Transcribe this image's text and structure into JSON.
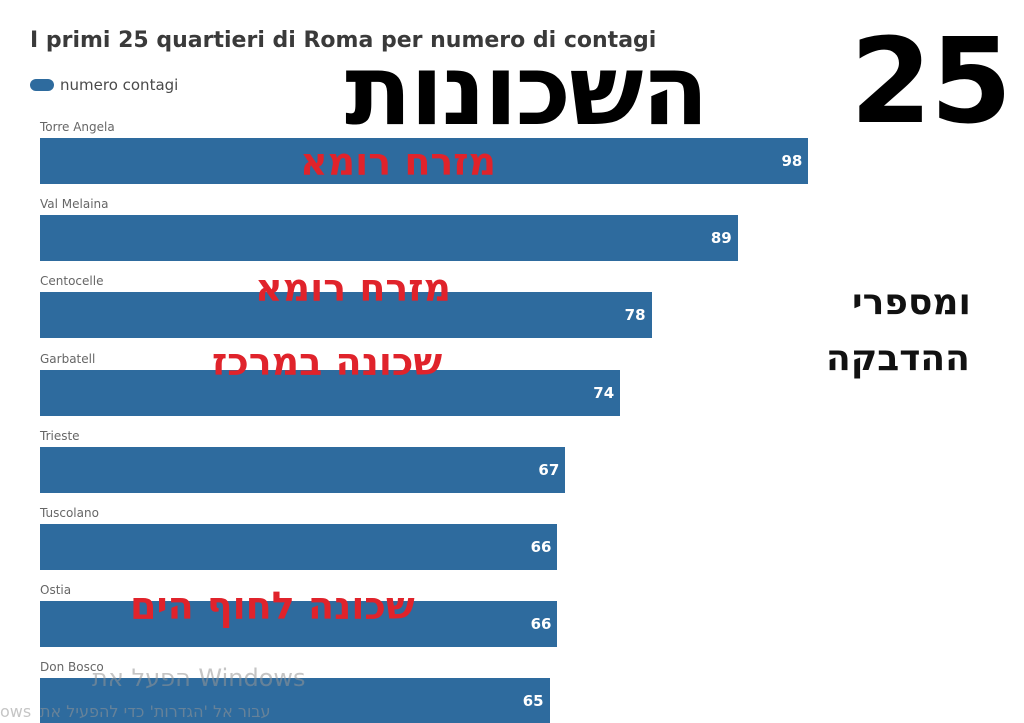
{
  "chart_data": {
    "type": "bar",
    "orientation": "horizontal",
    "title": "I primi 25 quartieri di Roma per numero di contagi",
    "legend": [
      {
        "name": "numero contagi",
        "color": "#2e6b9e"
      }
    ],
    "categories": [
      "Torre Angela",
      "Val Melaina",
      "Centocelle",
      "Garbatell",
      "Trieste",
      "Tuscolano",
      "Ostia",
      "Don Bosco"
    ],
    "series": [
      {
        "name": "numero contagi",
        "values": [
          98,
          89,
          78,
          74,
          67,
          66,
          66,
          65
        ]
      }
    ],
    "value_labels": [
      "98",
      "89",
      "78",
      "74",
      "67",
      "66",
      "66",
      "65"
    ],
    "xlim": [
      0,
      125
    ],
    "grid": false
  },
  "overlay": {
    "number": "25",
    "heading": "השכונות",
    "side_line1": "ומספרי",
    "side_line2": "ההדבקה",
    "note_east_1": "מזרח רומא",
    "note_east_2": "מזרח רומא",
    "note_center": "שכונה במרכז",
    "note_beach": "שכונה לחוף הים"
  },
  "watermark": {
    "line1": "הפעל את Windows",
    "line2": "עבור אל 'הגדרות' כדי להפעיל את",
    "fragment": "ows"
  },
  "colors": {
    "bar": "#2e6b9e",
    "annotation": "#e0232b"
  }
}
